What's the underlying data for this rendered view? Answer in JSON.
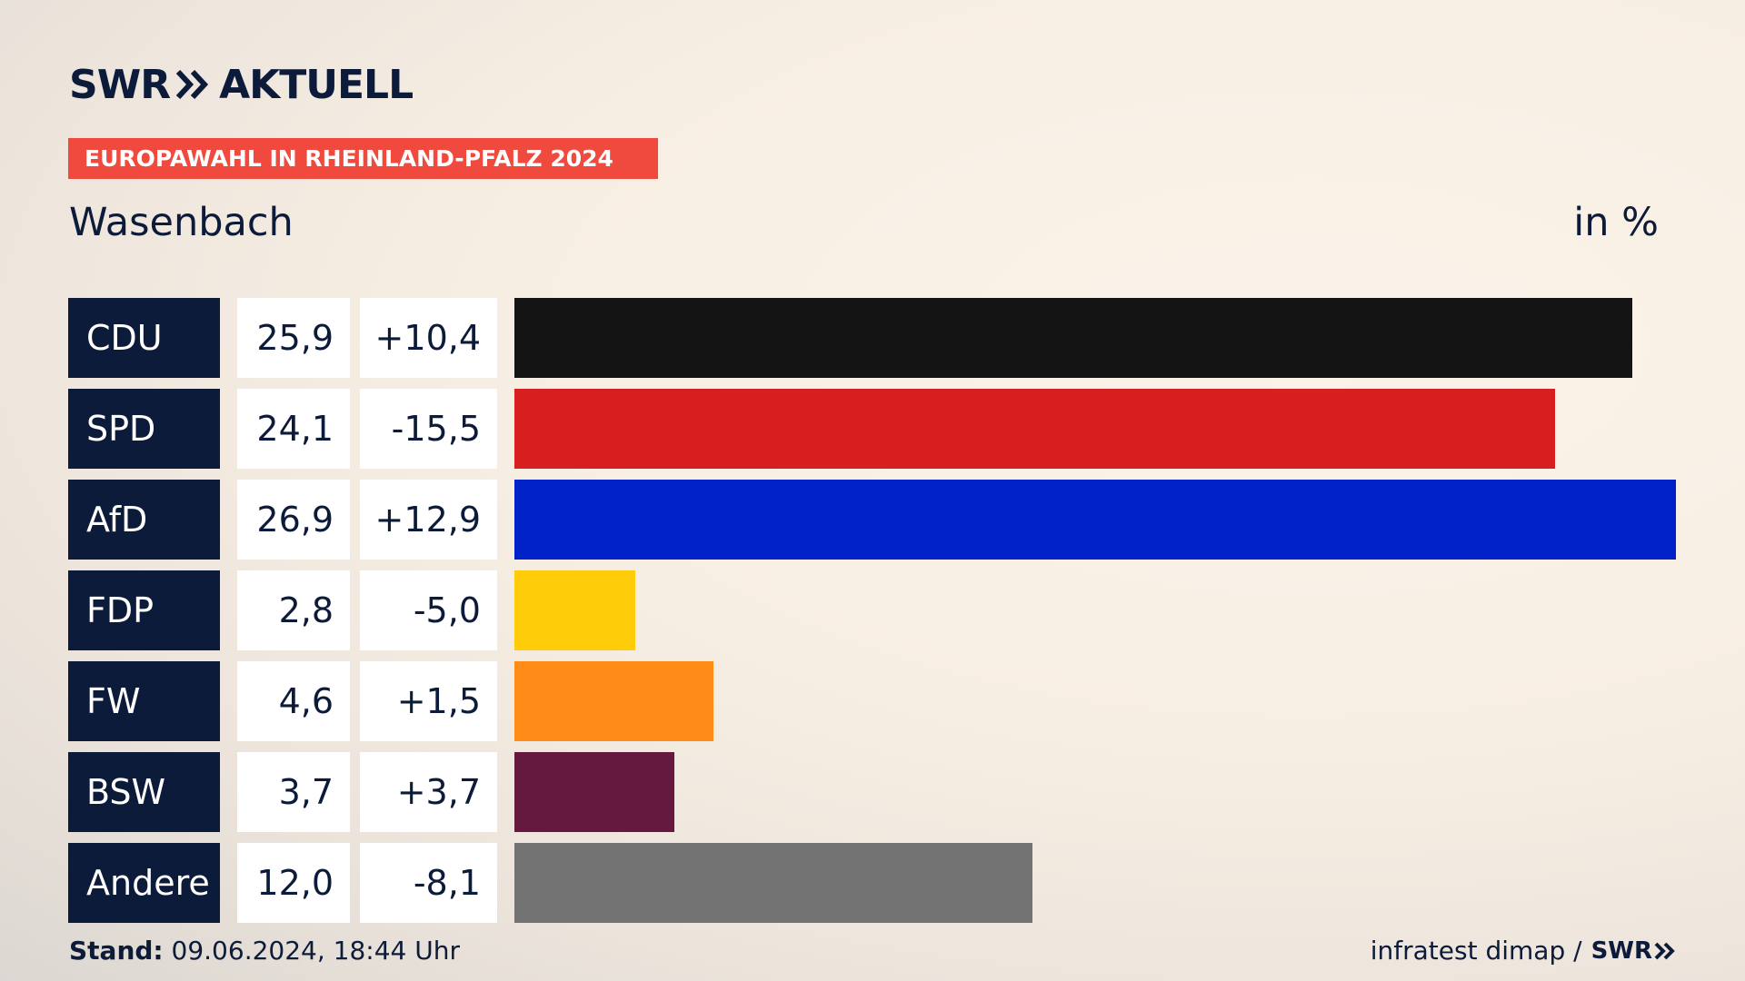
{
  "brand": {
    "name": "SWR",
    "product": "AKTUELL"
  },
  "banner": "EUROPAWAHL IN RHEINLAND-PFALZ 2024",
  "footer": {
    "stand_label": "Stand:",
    "stand_value": "09.06.2024, 18:44 Uhr",
    "source": "infratest dimap /",
    "source_logo": "SWR"
  },
  "chart_data": {
    "type": "bar",
    "orientation": "horizontal",
    "title": "Wasenbach",
    "unit_label": "in %",
    "categories": [
      "CDU",
      "SPD",
      "AfD",
      "FDP",
      "FW",
      "BSW",
      "Andere"
    ],
    "values": [
      25.9,
      24.1,
      26.9,
      2.8,
      4.6,
      3.7,
      12.0
    ],
    "value_labels": [
      "25,9",
      "24,1",
      "26,9",
      "2,8",
      "4,6",
      "3,7",
      "12,0"
    ],
    "diff_labels": [
      "+10,4",
      "-15,5",
      "+12,9",
      "-5,0",
      "+1,5",
      "+3,7",
      "-8,1"
    ],
    "colors": [
      "#141414",
      "#d81f20",
      "#0021c8",
      "#ffcc0a",
      "#ff8c17",
      "#65193e",
      "#727272"
    ],
    "xlim": [
      0,
      26.9
    ]
  }
}
